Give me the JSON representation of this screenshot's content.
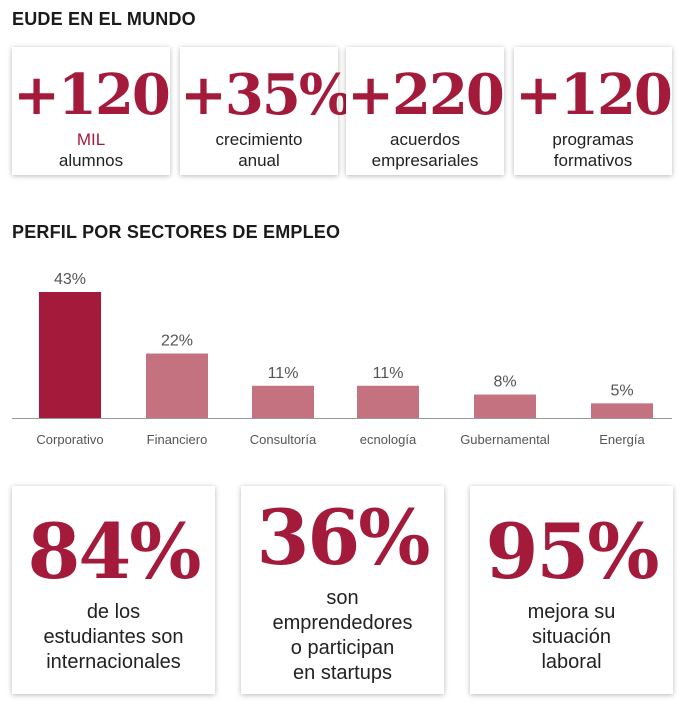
{
  "section1": {
    "title": "EUDE EN EL MUNDO",
    "stats": [
      {
        "value": "+120",
        "unit": "MIL",
        "line1": "alumnos",
        "line2": ""
      },
      {
        "value": "+35%",
        "unit": "",
        "line1": "crecimiento",
        "line2": "anual"
      },
      {
        "value": "+220",
        "unit": "",
        "line1": "acuerdos",
        "line2": "empresariales"
      },
      {
        "value": "+120",
        "unit": "",
        "line1": "programas",
        "line2": "formativos"
      }
    ]
  },
  "section2": {
    "title": "PERFIL POR SECTORES DE EMPLEO"
  },
  "chart_data": {
    "type": "bar",
    "categories": [
      "Corporativo",
      "Financiero",
      "Consultoría",
      "ecnología",
      "Gubernamental",
      "Energía"
    ],
    "values": [
      43,
      22,
      11,
      11,
      8,
      5
    ],
    "value_labels": [
      "43%",
      "22%",
      "11%",
      "11%",
      "8%",
      "5%"
    ],
    "highlight_color": "#a31a3b",
    "bar_color": "#c4727f",
    "label_color": "#555555",
    "title": "PERFIL POR SECTORES DE EMPLEO"
  },
  "section3": {
    "stats": [
      {
        "value": "84%",
        "lines": [
          "de los",
          "estudiantes son",
          "internacionales"
        ]
      },
      {
        "value": "36%",
        "lines": [
          "son",
          "emprendedores",
          "o participan",
          "en startups"
        ]
      },
      {
        "value": "95%",
        "lines": [
          "mejora su",
          "situación",
          "laboral"
        ]
      }
    ]
  },
  "colors": {
    "accent": "#a31a3b",
    "text": "#222222"
  }
}
